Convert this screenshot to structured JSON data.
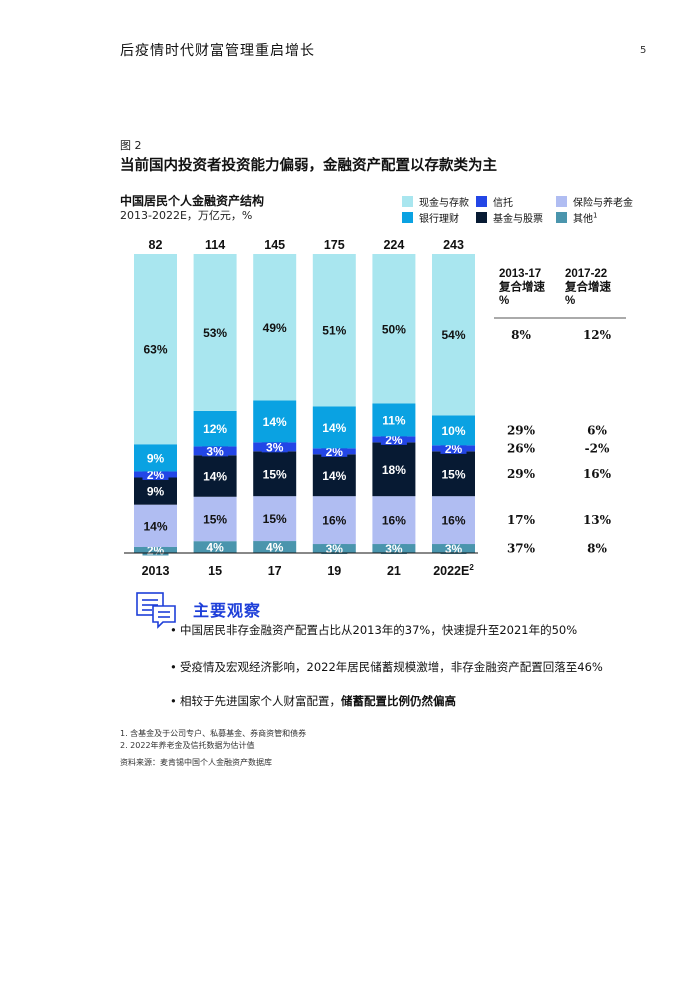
{
  "header": {
    "title": "后疫情时代财富管理重启增长",
    "page": "5"
  },
  "figure": {
    "label": "图 2",
    "title": "当前国内投资者投资能力偏弱，金融资产配置以存款类为主",
    "chart_title": "中国居民个人金融资产结构",
    "chart_subtitle": "2013-2022E，万亿元，%"
  },
  "colors": {
    "cash": "#a9e6ef",
    "trust": "#2346e6",
    "insurance": "#b0bdf2",
    "wealth": "#0aa2e2",
    "fund": "#071a33",
    "other": "#4a95ad"
  },
  "legend": [
    {
      "key": "cash",
      "label": "现金与存款"
    },
    {
      "key": "trust",
      "label": "信托"
    },
    {
      "key": "insurance",
      "label": "保险与养老金"
    },
    {
      "key": "wealth",
      "label": "银行理财"
    },
    {
      "key": "fund",
      "label": "基金与股票"
    },
    {
      "key": "other",
      "label": "其他",
      "sup": "1"
    }
  ],
  "chart_data": {
    "type": "bar",
    "stacked": true,
    "normalized": true,
    "categories": [
      "2013",
      "15",
      "17",
      "19",
      "21",
      "2022E"
    ],
    "category_superscripts": [
      "",
      "",
      "",
      "",
      "",
      "2"
    ],
    "totals": [
      82,
      114,
      145,
      175,
      224,
      243
    ],
    "series": [
      {
        "key": "other",
        "name": "其他",
        "values": [
          2,
          4,
          4,
          3,
          3,
          3
        ]
      },
      {
        "key": "insurance",
        "name": "保险与养老金",
        "values": [
          14,
          15,
          15,
          16,
          16,
          16
        ]
      },
      {
        "key": "fund",
        "name": "基金与股票",
        "values": [
          9,
          14,
          15,
          14,
          18,
          15
        ]
      },
      {
        "key": "trust",
        "name": "信托",
        "values": [
          2,
          3,
          3,
          2,
          2,
          2
        ]
      },
      {
        "key": "wealth",
        "name": "银行理财",
        "values": [
          9,
          12,
          14,
          14,
          11,
          10
        ]
      },
      {
        "key": "cash",
        "name": "现金与存款",
        "values": [
          63,
          53,
          49,
          51,
          50,
          54
        ]
      }
    ]
  },
  "cagr": {
    "col1_header": [
      "2013-17",
      "复合增速",
      "%"
    ],
    "col2_header": [
      "2017-22",
      "复合增速",
      "%"
    ],
    "rows": [
      {
        "key": "cash",
        "a": "8%",
        "b": "12%"
      },
      {
        "key": "wealth",
        "a": "29%",
        "b": "6%"
      },
      {
        "key": "trust",
        "a": "26%",
        "b": "-2%"
      },
      {
        "key": "fund",
        "a": "29%",
        "b": "16%"
      },
      {
        "key": "insurance",
        "a": "17%",
        "b": "13%"
      },
      {
        "key": "other",
        "a": "37%",
        "b": "8%"
      }
    ]
  },
  "observations": {
    "title": "主要观察",
    "bullets": [
      {
        "text": "中国居民非存金融资产配置占比从2013年的37%，快速提升至2021年的50%",
        "bold": ""
      },
      {
        "text": "受疫情及宏观经济影响，2022年居民储蓄规模激增，非存金融资产配置回落至46%",
        "bold": ""
      },
      {
        "text": "相较于先进国家个人财富配置，",
        "bold": "储蓄配置比例仍然偏高"
      }
    ]
  },
  "footnotes": [
    "1. 含基金及于公司专户、私募基金、券商资管和债券",
    "2. 2022年养老金及信托数据为估计值"
  ],
  "source": "资料来源：麦肯锡中国个人金融资产数据库"
}
